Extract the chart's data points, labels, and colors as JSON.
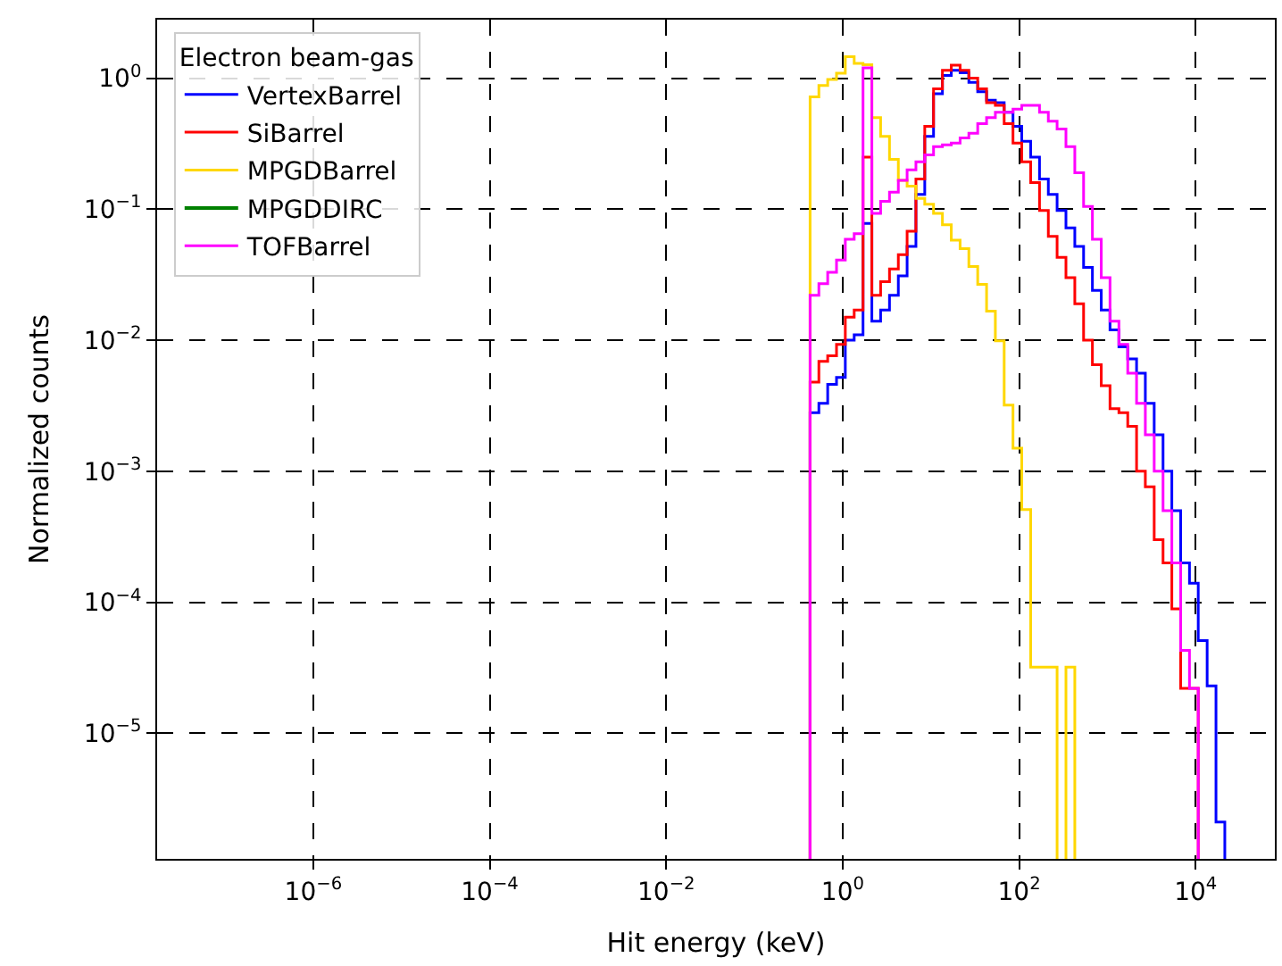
{
  "chart_data": {
    "type": "histogram",
    "xlabel": "Hit energy (keV)",
    "ylabel": "Normalized counts",
    "legend_title": "Electron beam-gas",
    "log": "xy",
    "grid": true,
    "legend": "top left",
    "line_style": "solid",
    "marker": "none",
    "xlim": [
      1.7e-08,
      79000
    ],
    "ylim": [
      1.1e-06,
      2.8
    ],
    "xticks": [
      {
        "value": 1e-06,
        "label": "10$^{−6}$"
      },
      {
        "value": 0.0001,
        "label": "10$^{−4}$"
      },
      {
        "value": 0.01,
        "label": "10$^{−2}$"
      },
      {
        "value": 1,
        "label": "10$^{0}$"
      },
      {
        "value": 100,
        "label": "10$^{2}$"
      },
      {
        "value": 10000,
        "label": "10$^{4}$"
      }
    ],
    "yticks": [
      {
        "value": 1e-05,
        "label": "10$^{−5}$"
      },
      {
        "value": 0.0001,
        "label": "10$^{−4}$"
      },
      {
        "value": 0.001,
        "label": "10$^{−3}$"
      },
      {
        "value": 0.01,
        "label": "10$^{−2}$"
      },
      {
        "value": 0.1,
        "label": "10$^{−1}$"
      },
      {
        "value": 1,
        "label": "10$^{0}$"
      }
    ],
    "bins": [
      0.427,
      0.537,
      0.676,
      0.851,
      1.07,
      1.35,
      1.7,
      2.14,
      2.69,
      3.39,
      4.27,
      5.37,
      6.76,
      8.51,
      10.7,
      13.5,
      17.0,
      21.4,
      26.9,
      33.9,
      42.7,
      53.7,
      67.6,
      85.1,
      107,
      135,
      170,
      214,
      269,
      339,
      427,
      537,
      676,
      851,
      1070,
      1350,
      1700,
      2140,
      2690,
      3390,
      4270,
      5370,
      6760,
      8510,
      10700,
      13500,
      17000,
      21400
    ],
    "series": [
      {
        "name": "VertexBarrel",
        "color": "#0000ff",
        "values": [
          0.0028,
          0.0033,
          0.0046,
          0.0052,
          0.01,
          0.011,
          0.078,
          0.014,
          0.017,
          0.022,
          0.031,
          0.052,
          0.13,
          0.36,
          0.76,
          1.05,
          1.15,
          1.1,
          0.93,
          0.79,
          0.68,
          0.65,
          0.55,
          0.43,
          0.33,
          0.25,
          0.17,
          0.13,
          0.098,
          0.072,
          0.052,
          0.036,
          0.024,
          0.017,
          0.012,
          0.0089,
          0.0072,
          0.0056,
          0.0033,
          0.0019,
          0.001,
          0.0005,
          0.0002,
          0.00014,
          5.1e-05,
          2.3e-05,
          2.1e-06
        ]
      },
      {
        "name": "SiBarrel",
        "color": "#ff0000",
        "bins": [
          0.427,
          0.537,
          0.676,
          0.851,
          1.07,
          1.35,
          1.7,
          2.14,
          2.69,
          3.39,
          4.27,
          5.37,
          6.76,
          8.51,
          10.7,
          13.5,
          17.0,
          21.4,
          26.9,
          33.9,
          42.7,
          53.7,
          67.6,
          85.1,
          107,
          135,
          170,
          214,
          269,
          339,
          427,
          537,
          676,
          851,
          1070,
          1350,
          1700,
          2140,
          2690,
          3390,
          4270,
          5370,
          6760,
          8510,
          10700
        ],
        "values": [
          0.0048,
          0.0069,
          0.0076,
          0.0093,
          0.015,
          0.017,
          0.25,
          0.022,
          0.028,
          0.035,
          0.045,
          0.068,
          0.17,
          0.43,
          0.83,
          1.15,
          1.26,
          1.15,
          1.0,
          0.83,
          0.65,
          0.62,
          0.45,
          0.32,
          0.23,
          0.16,
          0.098,
          0.062,
          0.043,
          0.03,
          0.019,
          0.01,
          0.0065,
          0.0045,
          0.003,
          0.0028,
          0.0022,
          0.001,
          0.00076,
          0.0003,
          0.0002,
          8.9e-05,
          2.2e-05,
          2.2e-05
        ]
      },
      {
        "name": "MPGDBarrel",
        "color": "#ffd700",
        "bins": [
          0.427,
          0.537,
          0.676,
          0.851,
          1.07,
          1.35,
          1.7,
          2.14,
          2.69,
          3.39,
          4.27,
          5.37,
          6.76,
          8.51,
          10.7,
          13.5,
          17.0,
          21.4,
          26.9,
          33.9,
          42.7,
          53.7,
          67.6,
          85.1,
          107,
          135,
          170,
          214,
          269,
          339,
          427
        ],
        "values": [
          0.72,
          0.88,
          0.98,
          1.09,
          1.46,
          1.3,
          1.27,
          0.5,
          0.36,
          0.24,
          0.166,
          0.15,
          0.121,
          0.109,
          0.093,
          0.076,
          0.058,
          0.05,
          0.0365,
          0.0267,
          0.0167,
          0.0099,
          0.0032,
          0.0015,
          0.00051,
          3.2e-05,
          3.2e-05,
          3.2e-05,
          null,
          3.2e-05
        ]
      },
      {
        "name": "MPGDDIRC",
        "color": "#008000",
        "type": "line"
      },
      {
        "name": "TOFBarrel",
        "color": "#ff00ff",
        "bins": [
          0.427,
          0.537,
          0.676,
          0.851,
          1.07,
          1.35,
          1.7,
          2.14,
          2.69,
          3.39,
          4.27,
          5.37,
          6.76,
          8.51,
          10.7,
          13.5,
          17.0,
          21.4,
          26.9,
          33.9,
          42.7,
          53.7,
          67.6,
          85.1,
          107,
          135,
          170,
          214,
          269,
          339,
          427,
          537,
          676,
          851,
          1070,
          1350,
          1700,
          2140,
          2690,
          3390,
          4270,
          5370,
          6760,
          8510,
          10700
        ],
        "values": [
          0.022,
          0.027,
          0.033,
          0.041,
          0.059,
          0.065,
          1.2,
          0.093,
          0.115,
          0.135,
          0.166,
          0.2,
          0.23,
          0.26,
          0.3,
          0.31,
          0.32,
          0.35,
          0.38,
          0.45,
          0.5,
          0.55,
          0.55,
          0.58,
          0.62,
          0.62,
          0.55,
          0.47,
          0.41,
          0.3,
          0.19,
          0.105,
          0.059,
          0.03,
          0.014,
          0.0093,
          0.0056,
          0.0033,
          0.0019,
          0.001,
          0.0005,
          0.0002,
          4.3e-05,
          2.2e-05
        ]
      }
    ]
  }
}
